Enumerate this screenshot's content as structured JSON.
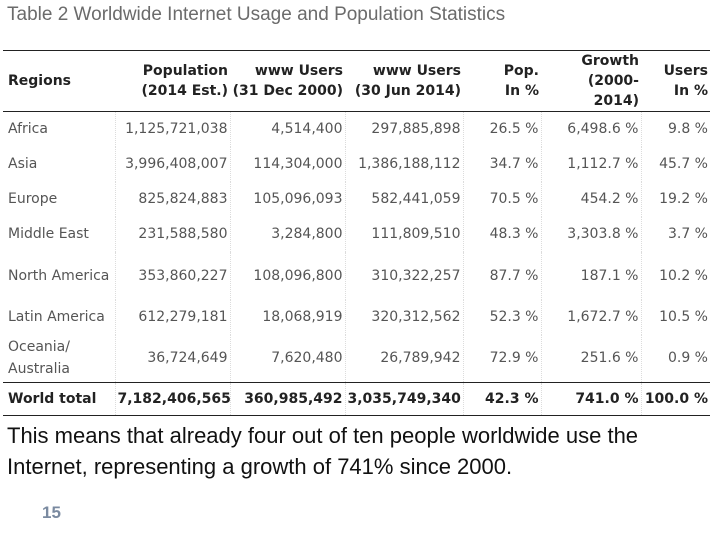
{
  "title": "Table 2 Worldwide Internet Usage and Population Statistics",
  "table": {
    "headers": [
      {
        "line1": "Regions",
        "line2": ""
      },
      {
        "line1": "Population",
        "line2": "(2014 Est.)"
      },
      {
        "line1": "www Users",
        "line2": "(31 Dec 2000)"
      },
      {
        "line1": "www Users",
        "line2": "(30 Jun 2014)"
      },
      {
        "line1": "Pop.",
        "line2": "In %"
      },
      {
        "line1": "Growth",
        "line2": "(2000-2014)"
      },
      {
        "line1": "Users",
        "line2": "In %"
      }
    ],
    "rows": [
      [
        "Africa",
        "1,125,721,038",
        "4,514,400",
        "297,885,898",
        "26.5 %",
        "6,498.6 %",
        "9.8 %"
      ],
      [
        "Asia",
        "3,996,408,007",
        "114,304,000",
        "1,386,188,112",
        "34.7 %",
        "1,112.7 %",
        "45.7 %"
      ],
      [
        "Europe",
        "825,824,883",
        "105,096,093",
        "582,441,059",
        "70.5 %",
        "454.2 %",
        "19.2 %"
      ],
      [
        "Middle East",
        "231,588,580",
        "3,284,800",
        "111,809,510",
        "48.3 %",
        "3,303.8 %",
        "3.7 %"
      ],
      [
        "North America",
        "353,860,227",
        "108,096,800",
        "310,322,257",
        "87.7 %",
        "187.1 %",
        "10.2 %"
      ],
      [
        "Latin America",
        "612,279,181",
        "18,068,919",
        "320,312,562",
        "52.3 %",
        "1,672.7 %",
        "10.5 %"
      ],
      [
        "Oceania/ Australia",
        "36,724,649",
        "7,620,480",
        "26,789,942",
        "72.9 %",
        "251.6 %",
        "0.9 %"
      ]
    ],
    "total": [
      "World total",
      "7,182,406,565",
      "360,985,492",
      "3,035,749,340",
      "42.3 %",
      "741.0 %",
      "100.0 %"
    ]
  },
  "caption": "This means that already four out of ten people worldwide use the Internet, representing a growth of 741% since 2000.",
  "page_number": "15"
}
